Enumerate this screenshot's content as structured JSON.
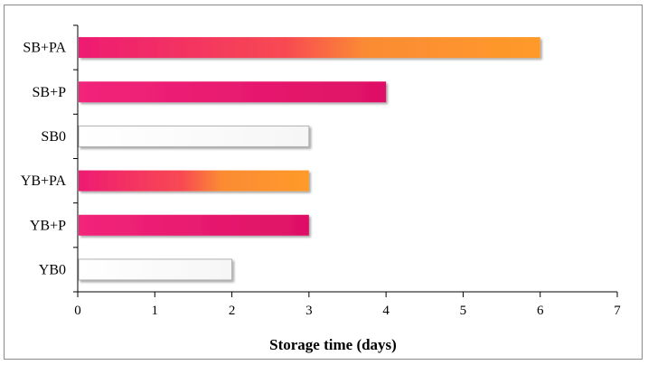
{
  "chart_data": {
    "type": "bar",
    "orientation": "horizontal",
    "title": "",
    "xlabel": "Storage time (days)",
    "ylabel": "",
    "xlim": [
      0,
      7
    ],
    "xticks": [
      0,
      1,
      2,
      3,
      4,
      5,
      6,
      7
    ],
    "grid": false,
    "categories": [
      "SB+PA",
      "SB+P",
      "SB0",
      "YB+PA",
      "YB+P",
      "YB0"
    ],
    "values": [
      6,
      4,
      3,
      3,
      3,
      2
    ],
    "bar_styles": [
      "gradient-pink-orange",
      "solid-pink",
      "outline-white",
      "gradient-pink-orange",
      "solid-pink",
      "outline-white"
    ],
    "colors": {
      "pink": "#e8146b",
      "orange": "#ff9a2a",
      "outline": "#b0b0b0"
    }
  }
}
